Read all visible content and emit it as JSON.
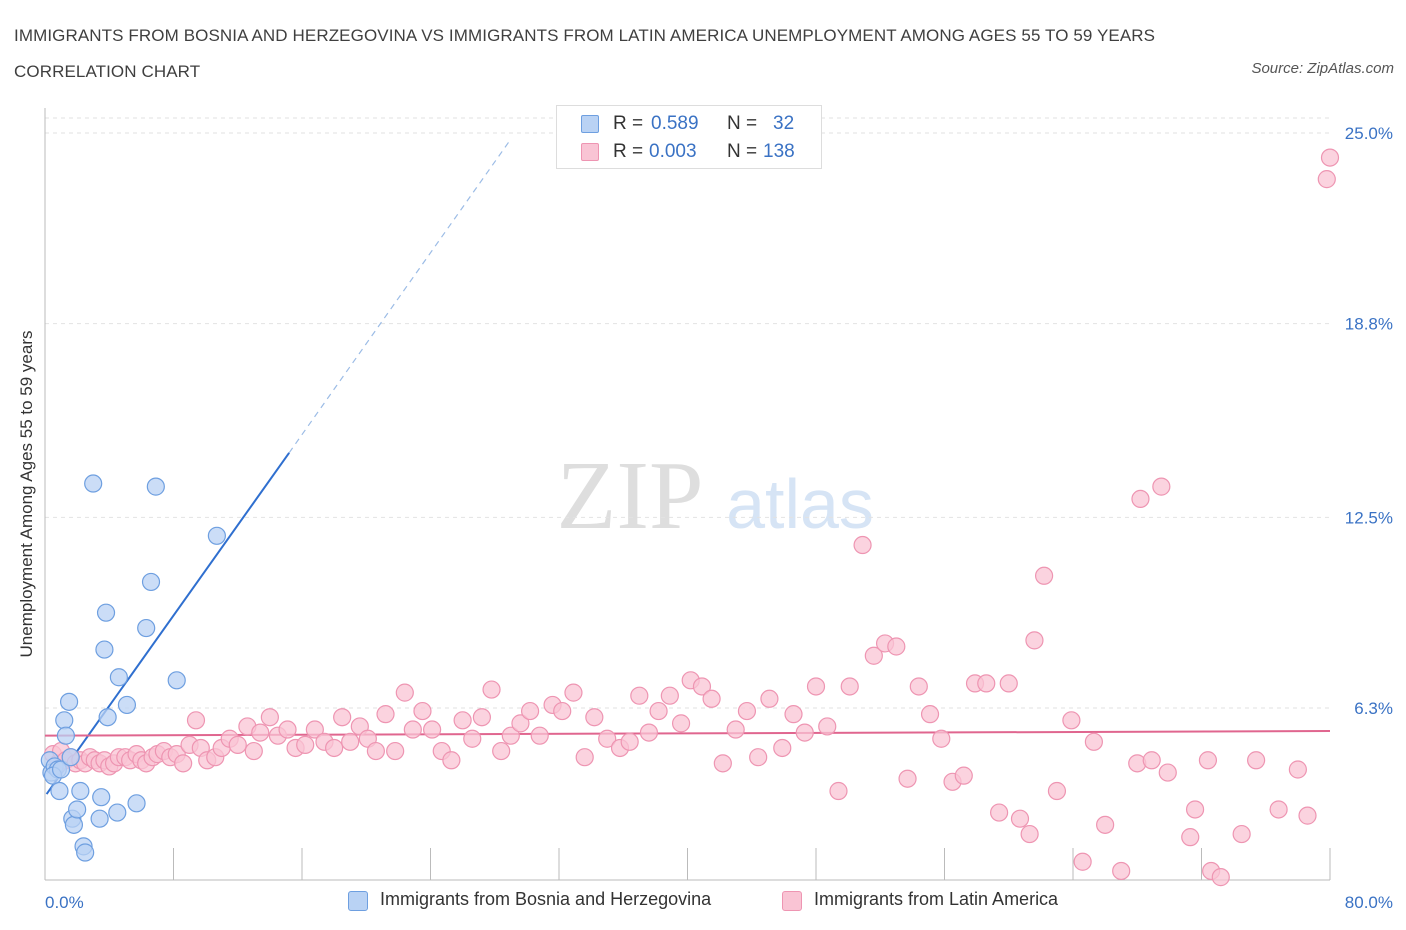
{
  "title": "IMMIGRANTS FROM BOSNIA AND HERZEGOVINA VS IMMIGRANTS FROM LATIN AMERICA UNEMPLOYMENT AMONG AGES 55 TO 59 YEARS CORRELATION CHART",
  "source": "Source: ZipAtlas.com",
  "watermark": {
    "zip": "ZIP",
    "atlas": "atlas"
  },
  "colors": {
    "blue_fill": "#b9d2f4",
    "blue_stroke": "#6e9fe0",
    "blue_line": "#2f6fcf",
    "pink_fill": "#f9c4d4",
    "pink_stroke": "#ee95b2",
    "pink_line": "#e0668f",
    "axis_label": "#3a72c4",
    "grid": "#e2e2e2"
  },
  "legend": {
    "rows": [
      {
        "series": "bosnia",
        "r_label": "R =",
        "r_value": "0.589",
        "n_label": "N =",
        "n_value": "32"
      },
      {
        "series": "latin",
        "r_label": "R =",
        "r_value": "0.003",
        "n_label": "N =",
        "n_value": "138"
      }
    ]
  },
  "bottom_legend": [
    {
      "series": "bosnia",
      "label": "Immigrants from Bosnia and Herzegovina"
    },
    {
      "series": "latin",
      "label": "Immigrants from Latin America"
    }
  ],
  "chart_data": {
    "type": "scatter",
    "title": "IMMIGRANTS FROM BOSNIA AND HERZEGOVINA VS IMMIGRANTS FROM LATIN AMERICA UNEMPLOYMENT AMONG AGES 55 TO 59 YEARS CORRELATION CHART",
    "xlabel": "",
    "ylabel": "Unemployment Among Ages 55 to 59 years",
    "xlim": [
      0,
      80
    ],
    "ylim": [
      0,
      26
    ],
    "x_tick_labels": [
      {
        "value": 0,
        "label": "0.0%"
      },
      {
        "value": 80,
        "label": "80.0%"
      }
    ],
    "x_tick_marks": [
      0,
      8,
      16,
      24,
      32,
      40,
      48,
      56,
      64,
      72,
      80
    ],
    "y_ticks": [
      {
        "value": 6.3,
        "label": "6.3%"
      },
      {
        "value": 12.5,
        "label": "12.5%"
      },
      {
        "value": 18.8,
        "label": "18.8%"
      },
      {
        "value": 25.0,
        "label": "25.0%"
      }
    ],
    "grid": true,
    "legend_position": "top-center",
    "series": [
      {
        "name": "Immigrants from Bosnia and Herzegovina",
        "key": "bosnia",
        "r": 0.589,
        "n": 32,
        "trend": {
          "x0": 0.1,
          "y0": 3.5,
          "x1": 15.2,
          "y1": 14.6,
          "dashed_to_x": 29.0,
          "dashed_to_y": 24.8
        },
        "points": [
          [
            0.3,
            4.6
          ],
          [
            0.4,
            4.2
          ],
          [
            0.6,
            4.4
          ],
          [
            0.8,
            4.3
          ],
          [
            0.5,
            4.1
          ],
          [
            1.0,
            4.3
          ],
          [
            0.9,
            3.6
          ],
          [
            1.2,
            5.9
          ],
          [
            1.3,
            5.4
          ],
          [
            1.5,
            6.5
          ],
          [
            1.6,
            4.7
          ],
          [
            1.7,
            2.7
          ],
          [
            1.8,
            2.5
          ],
          [
            2.0,
            3.0
          ],
          [
            2.2,
            3.6
          ],
          [
            2.4,
            1.8
          ],
          [
            2.5,
            1.6
          ],
          [
            3.0,
            13.6
          ],
          [
            3.4,
            2.7
          ],
          [
            3.5,
            3.4
          ],
          [
            3.7,
            8.2
          ],
          [
            3.8,
            9.4
          ],
          [
            3.9,
            6.0
          ],
          [
            4.5,
            2.9
          ],
          [
            4.6,
            7.3
          ],
          [
            5.1,
            6.4
          ],
          [
            5.7,
            3.2
          ],
          [
            6.3,
            8.9
          ],
          [
            6.6,
            10.4
          ],
          [
            6.9,
            13.5
          ],
          [
            8.2,
            7.2
          ],
          [
            10.7,
            11.9
          ]
        ]
      },
      {
        "name": "Immigrants from Latin America",
        "key": "latin",
        "r": 0.003,
        "n": 138,
        "trend": {
          "x0": 0,
          "y0": 5.4,
          "x1": 80,
          "y1": 5.55
        },
        "points": [
          [
            0.5,
            4.8
          ],
          [
            0.8,
            4.5
          ],
          [
            1.0,
            4.9
          ],
          [
            1.3,
            4.6
          ],
          [
            1.6,
            4.7
          ],
          [
            1.9,
            4.5
          ],
          [
            2.2,
            4.6
          ],
          [
            2.5,
            4.5
          ],
          [
            2.8,
            4.7
          ],
          [
            3.1,
            4.6
          ],
          [
            3.4,
            4.5
          ],
          [
            3.7,
            4.6
          ],
          [
            4.0,
            4.4
          ],
          [
            4.3,
            4.5
          ],
          [
            4.6,
            4.7
          ],
          [
            5.0,
            4.7
          ],
          [
            5.3,
            4.6
          ],
          [
            5.7,
            4.8
          ],
          [
            6.0,
            4.6
          ],
          [
            6.3,
            4.5
          ],
          [
            6.7,
            4.7
          ],
          [
            7.0,
            4.8
          ],
          [
            7.4,
            4.9
          ],
          [
            7.8,
            4.7
          ],
          [
            8.2,
            4.8
          ],
          [
            8.6,
            4.5
          ],
          [
            9.0,
            5.1
          ],
          [
            9.4,
            5.9
          ],
          [
            9.7,
            5.0
          ],
          [
            10.1,
            4.6
          ],
          [
            10.6,
            4.7
          ],
          [
            11.0,
            5.0
          ],
          [
            11.5,
            5.3
          ],
          [
            12.0,
            5.1
          ],
          [
            12.6,
            5.7
          ],
          [
            13.0,
            4.9
          ],
          [
            13.4,
            5.5
          ],
          [
            14.0,
            6.0
          ],
          [
            14.5,
            5.4
          ],
          [
            15.1,
            5.6
          ],
          [
            15.6,
            5.0
          ],
          [
            16.2,
            5.1
          ],
          [
            16.8,
            5.6
          ],
          [
            17.4,
            5.2
          ],
          [
            18.0,
            5.0
          ],
          [
            18.5,
            6.0
          ],
          [
            19.0,
            5.2
          ],
          [
            19.6,
            5.7
          ],
          [
            20.1,
            5.3
          ],
          [
            20.6,
            4.9
          ],
          [
            21.2,
            6.1
          ],
          [
            21.8,
            4.9
          ],
          [
            22.4,
            6.8
          ],
          [
            22.9,
            5.6
          ],
          [
            23.5,
            6.2
          ],
          [
            24.1,
            5.6
          ],
          [
            24.7,
            4.9
          ],
          [
            25.3,
            4.6
          ],
          [
            26.0,
            5.9
          ],
          [
            26.6,
            5.3
          ],
          [
            27.2,
            6.0
          ],
          [
            27.8,
            6.9
          ],
          [
            28.4,
            4.9
          ],
          [
            29.0,
            5.4
          ],
          [
            29.6,
            5.8
          ],
          [
            30.2,
            6.2
          ],
          [
            30.8,
            5.4
          ],
          [
            31.6,
            6.4
          ],
          [
            32.2,
            6.2
          ],
          [
            32.9,
            6.8
          ],
          [
            33.6,
            4.7
          ],
          [
            34.2,
            6.0
          ],
          [
            35.0,
            5.3
          ],
          [
            35.8,
            5.0
          ],
          [
            36.4,
            5.2
          ],
          [
            37.0,
            6.7
          ],
          [
            37.6,
            5.5
          ],
          [
            38.2,
            6.2
          ],
          [
            38.9,
            6.7
          ],
          [
            39.6,
            5.8
          ],
          [
            40.2,
            7.2
          ],
          [
            40.9,
            7.0
          ],
          [
            41.5,
            6.6
          ],
          [
            42.2,
            4.5
          ],
          [
            43.0,
            5.6
          ],
          [
            43.7,
            6.2
          ],
          [
            44.4,
            4.7
          ],
          [
            45.1,
            6.6
          ],
          [
            45.9,
            5.0
          ],
          [
            46.6,
            6.1
          ],
          [
            47.3,
            5.5
          ],
          [
            48.0,
            7.0
          ],
          [
            48.7,
            5.7
          ],
          [
            49.4,
            3.6
          ],
          [
            50.1,
            7.0
          ],
          [
            50.9,
            11.6
          ],
          [
            51.6,
            8.0
          ],
          [
            52.3,
            8.4
          ],
          [
            53.0,
            8.3
          ],
          [
            53.7,
            4.0
          ],
          [
            54.4,
            7.0
          ],
          [
            55.1,
            6.1
          ],
          [
            55.8,
            5.3
          ],
          [
            56.5,
            3.9
          ],
          [
            57.2,
            4.1
          ],
          [
            57.9,
            7.1
          ],
          [
            58.6,
            7.1
          ],
          [
            59.4,
            2.9
          ],
          [
            60.0,
            7.1
          ],
          [
            60.7,
            2.7
          ],
          [
            61.3,
            2.2
          ],
          [
            61.6,
            8.5
          ],
          [
            62.2,
            10.6
          ],
          [
            63.0,
            3.6
          ],
          [
            63.9,
            5.9
          ],
          [
            64.6,
            1.3
          ],
          [
            65.3,
            5.2
          ],
          [
            66.0,
            2.5
          ],
          [
            67.0,
            1.0
          ],
          [
            68.0,
            4.5
          ],
          [
            68.2,
            13.1
          ],
          [
            68.9,
            4.6
          ],
          [
            69.5,
            13.5
          ],
          [
            69.9,
            4.2
          ],
          [
            71.3,
            2.1
          ],
          [
            71.6,
            3.0
          ],
          [
            72.4,
            4.6
          ],
          [
            72.6,
            1.0
          ],
          [
            73.2,
            0.8
          ],
          [
            74.5,
            2.2
          ],
          [
            75.4,
            4.6
          ],
          [
            76.8,
            3.0
          ],
          [
            78.0,
            4.3
          ],
          [
            78.6,
            2.8
          ],
          [
            79.8,
            23.5
          ],
          [
            80.0,
            24.2
          ]
        ]
      }
    ]
  }
}
